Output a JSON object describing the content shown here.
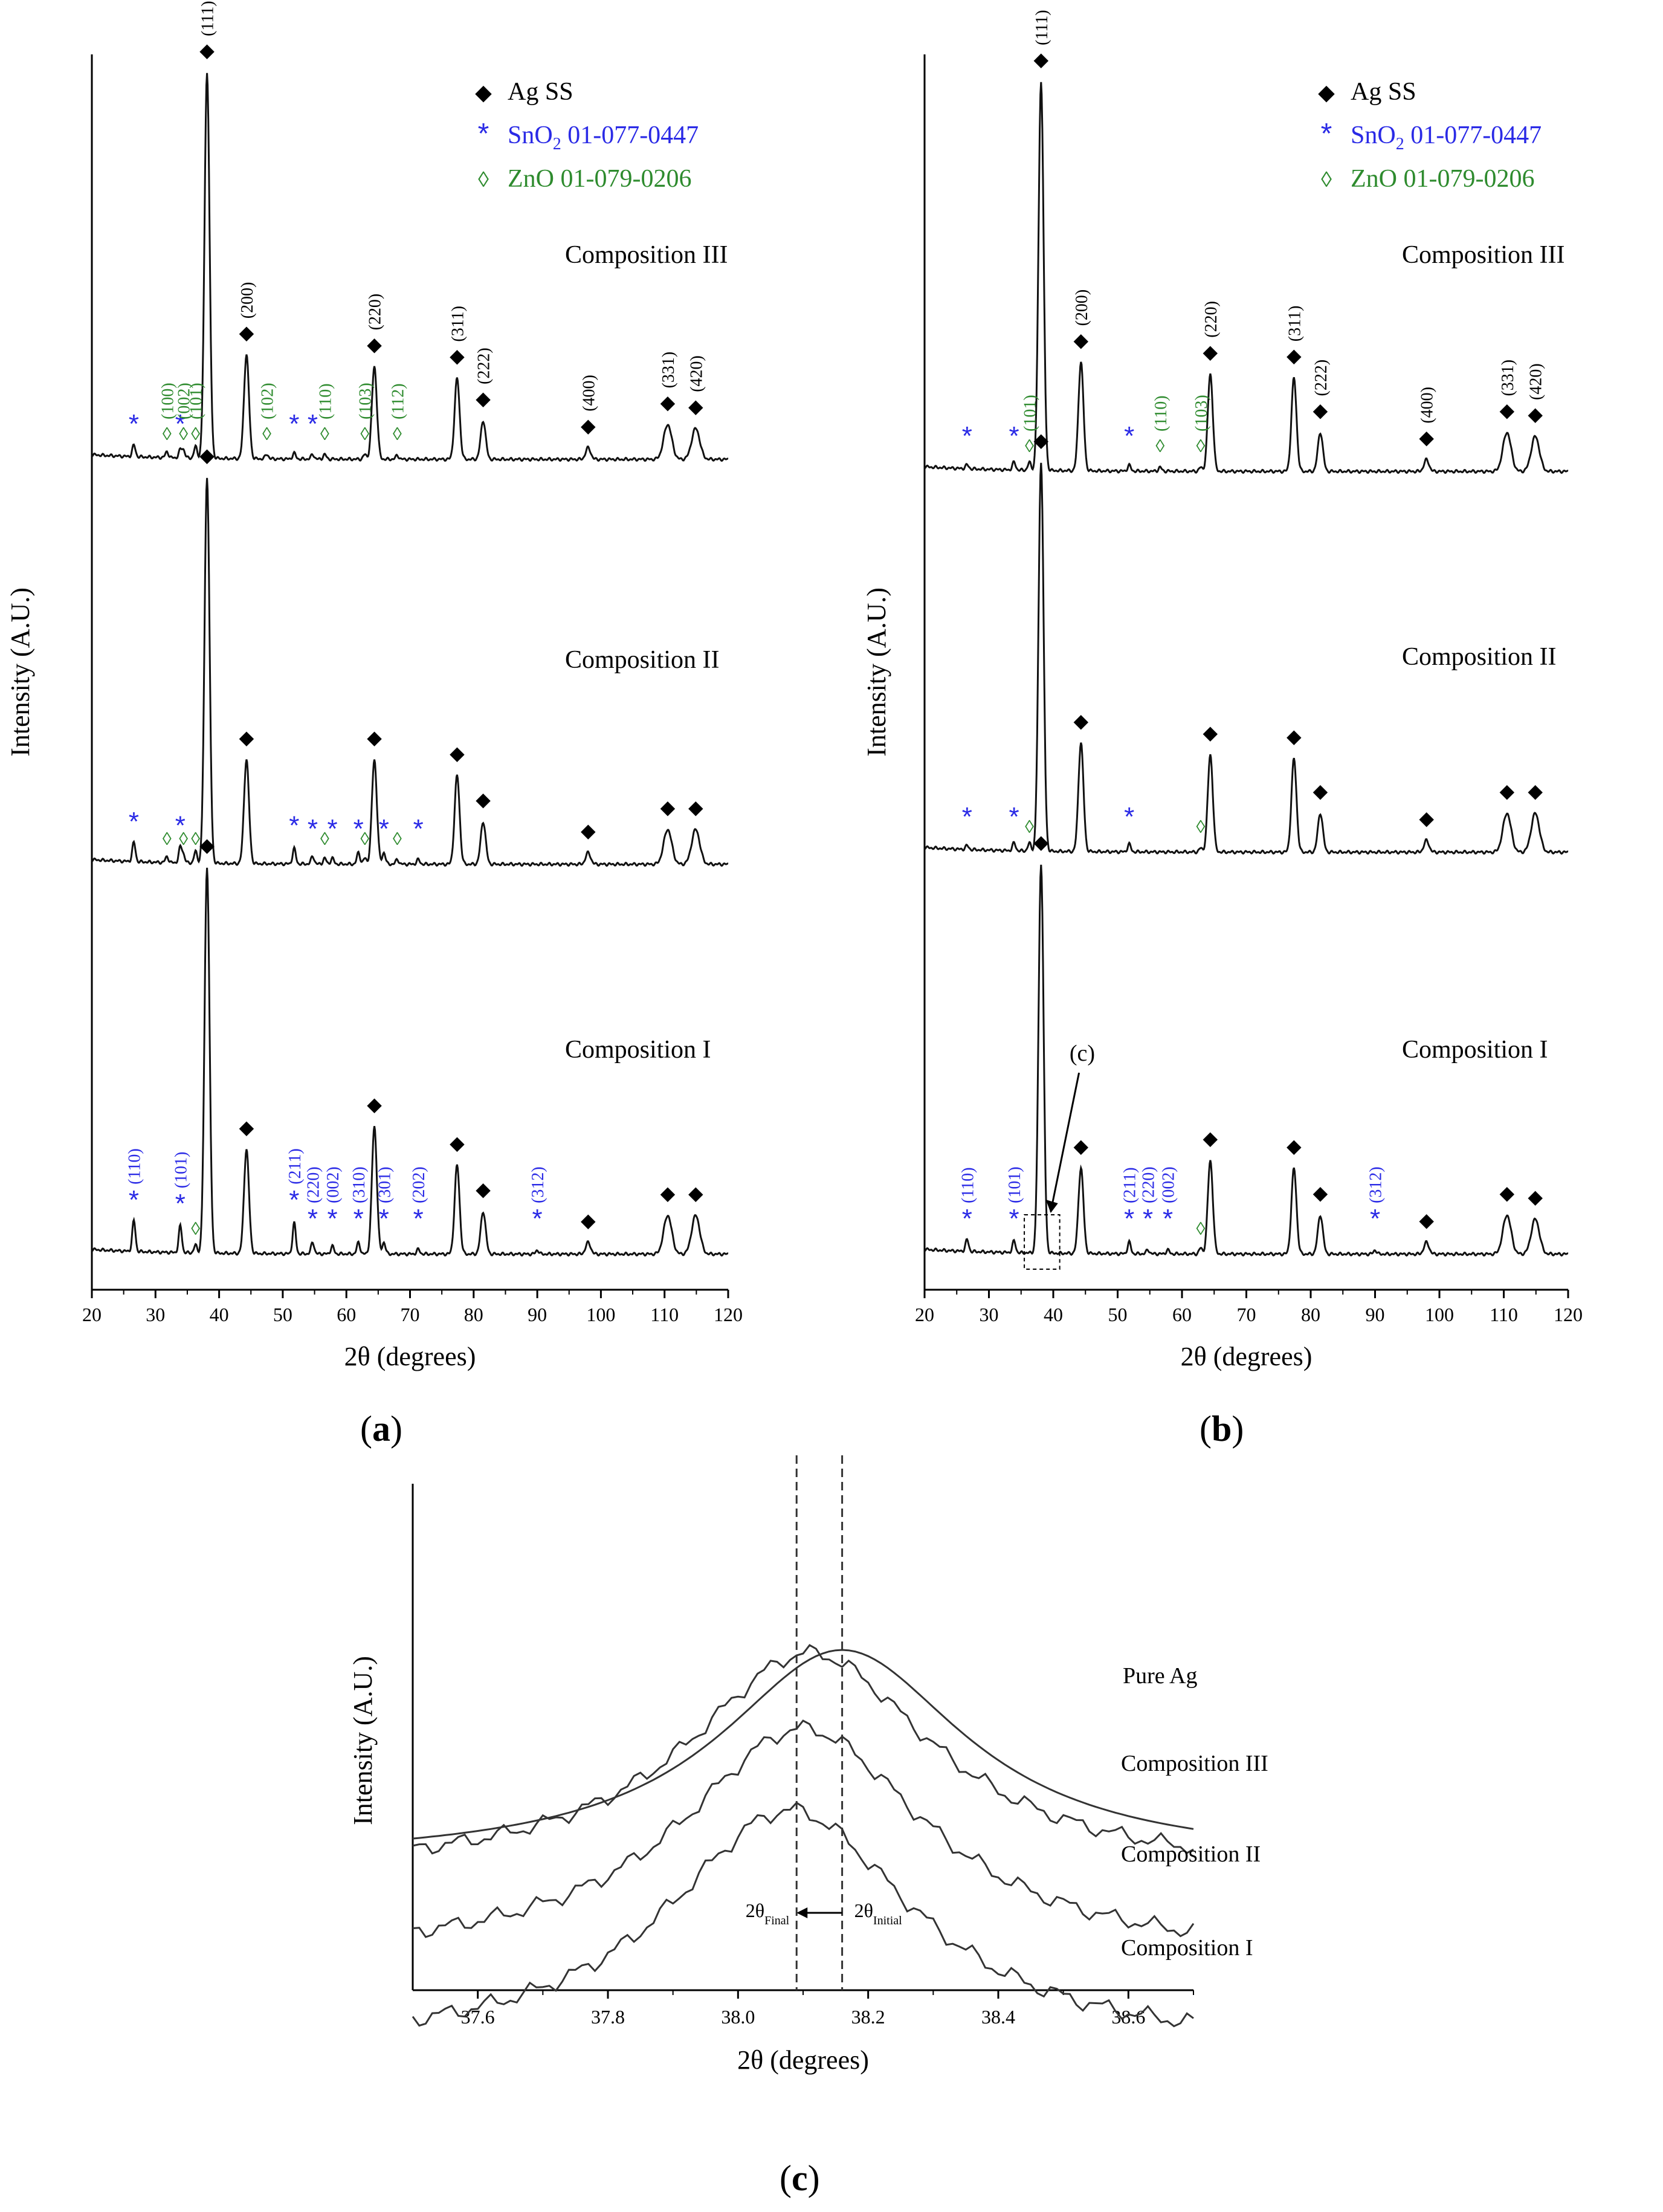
{
  "colors": {
    "ag": "#000000",
    "sno2": "#2a2ae6",
    "zno": "#2e8b2e",
    "line": "#111111",
    "dash": "#333333"
  },
  "panel_labels": {
    "a": "a",
    "b": "b",
    "c": "c"
  },
  "chart_data": [
    {
      "id": "a",
      "type": "line",
      "title": "",
      "xlabel": "2θ (degrees)",
      "ylabel": "Intensity (A.U.)",
      "xlim": [
        20,
        120
      ],
      "xticks": [
        20,
        30,
        40,
        50,
        60,
        70,
        80,
        90,
        100,
        110,
        120
      ],
      "legend": [
        {
          "symbol": "◆",
          "text": "Ag SS",
          "color": "ag"
        },
        {
          "symbol": "*",
          "text": "SnO",
          "sub": "2",
          "rest": " 01-077-0447",
          "color": "sno2"
        },
        {
          "symbol": "◊",
          "text": "ZnO  01-079-0206",
          "color": "zno"
        }
      ],
      "series": [
        {
          "name": "Composition III",
          "ag_peaks": [
            [
              38.1,
              1.0,
              "(111)"
            ],
            [
              44.3,
              0.27,
              "(200)"
            ],
            [
              64.4,
              0.24,
              "(220)"
            ],
            [
              77.4,
              0.21,
              "(311)"
            ],
            [
              81.5,
              0.1,
              "(222)"
            ],
            [
              98.0,
              0.03,
              "(400)"
            ],
            [
              110.5,
              0.09,
              "(331)"
            ],
            [
              114.9,
              0.08,
              "(420)"
            ]
          ],
          "sno2_peaks": [
            [
              26.6,
              0.03,
              ""
            ],
            [
              33.9,
              0.02,
              ""
            ],
            [
              51.8,
              0.015,
              ""
            ],
            [
              54.7,
              0.012,
              ""
            ]
          ],
          "zno_peaks": [
            [
              31.8,
              0.015,
              "(100)"
            ],
            [
              34.4,
              0.02,
              "(002)"
            ],
            [
              36.3,
              0.03,
              "(101)"
            ],
            [
              47.5,
              0.012,
              "(102)"
            ],
            [
              56.6,
              0.012,
              "(110)"
            ],
            [
              62.9,
              0.012,
              "(103)"
            ],
            [
              68.0,
              0.01,
              "(112)"
            ]
          ]
        },
        {
          "name": "Composition II",
          "ag_peaks": [
            [
              38.1,
              1.0,
              ""
            ],
            [
              44.3,
              0.27,
              ""
            ],
            [
              64.4,
              0.27,
              ""
            ],
            [
              77.4,
              0.23,
              ""
            ],
            [
              81.5,
              0.11,
              ""
            ],
            [
              98.0,
              0.03,
              ""
            ],
            [
              110.5,
              0.09,
              ""
            ],
            [
              114.9,
              0.09,
              ""
            ]
          ],
          "sno2_peaks": [
            [
              26.6,
              0.05,
              ""
            ],
            [
              33.9,
              0.04,
              ""
            ],
            [
              51.8,
              0.04,
              ""
            ],
            [
              54.7,
              0.02,
              ""
            ],
            [
              57.8,
              0.015,
              ""
            ],
            [
              61.9,
              0.03,
              ""
            ],
            [
              65.9,
              0.03,
              ""
            ],
            [
              71.3,
              0.012,
              ""
            ]
          ],
          "zno_peaks": [
            [
              31.8,
              0.015,
              ""
            ],
            [
              34.4,
              0.02,
              ""
            ],
            [
              36.3,
              0.03,
              ""
            ],
            [
              56.6,
              0.015,
              ""
            ],
            [
              62.9,
              0.015,
              ""
            ],
            [
              68.0,
              0.012,
              ""
            ]
          ]
        },
        {
          "name": "Composition I",
          "ag_peaks": [
            [
              38.1,
              1.0,
              ""
            ],
            [
              44.3,
              0.27,
              ""
            ],
            [
              64.4,
              0.33,
              ""
            ],
            [
              77.4,
              0.23,
              ""
            ],
            [
              81.5,
              0.11,
              ""
            ],
            [
              98.0,
              0.03,
              ""
            ],
            [
              110.5,
              0.1,
              ""
            ],
            [
              114.9,
              0.1,
              ""
            ]
          ],
          "sno2_peaks": [
            [
              26.6,
              0.08,
              "(110)"
            ],
            [
              33.9,
              0.07,
              "(101)"
            ],
            [
              51.8,
              0.08,
              "(211)"
            ],
            [
              54.7,
              0.03,
              "(220)"
            ],
            [
              57.8,
              0.02,
              "(002)"
            ],
            [
              61.9,
              0.03,
              "(310)"
            ],
            [
              65.9,
              0.03,
              "(301)"
            ],
            [
              71.3,
              0.012,
              "(202)"
            ],
            [
              90.0,
              0.01,
              "(312)"
            ]
          ],
          "zno_peaks": [
            [
              36.3,
              0.02,
              ""
            ]
          ]
        }
      ]
    },
    {
      "id": "b",
      "type": "line",
      "title": "",
      "xlabel": "2θ (degrees)",
      "ylabel": "Intensity (A.U.)",
      "xlim": [
        20,
        120
      ],
      "xticks": [
        20,
        30,
        40,
        50,
        60,
        70,
        80,
        90,
        100,
        110,
        120
      ],
      "legend": [
        {
          "symbol": "◆",
          "text": "Ag SS",
          "color": "ag"
        },
        {
          "symbol": "*",
          "text": "SnO",
          "sub": "2",
          "rest": " 01-077-0447",
          "color": "sno2"
        },
        {
          "symbol": "◊",
          "text": "ZnO  01-079-0206",
          "color": "zno"
        }
      ],
      "inset_annotation": "(c)",
      "series": [
        {
          "name": "Composition III",
          "ag_peaks": [
            [
              38.1,
              1.0,
              "(111)"
            ],
            [
              44.3,
              0.28,
              "(200)"
            ],
            [
              64.4,
              0.25,
              "(220)"
            ],
            [
              77.4,
              0.24,
              "(311)"
            ],
            [
              81.5,
              0.1,
              "(222)"
            ],
            [
              98.0,
              0.03,
              "(400)"
            ],
            [
              110.5,
              0.1,
              "(331)"
            ],
            [
              114.9,
              0.09,
              "(420)"
            ]
          ],
          "sno2_peaks": [
            [
              26.6,
              0.01,
              ""
            ],
            [
              33.9,
              0.02,
              ""
            ],
            [
              51.8,
              0.015,
              ""
            ]
          ],
          "zno_peaks": [
            [
              36.3,
              0.02,
              "(101)"
            ],
            [
              56.6,
              0.01,
              "(110)"
            ],
            [
              62.9,
              0.01,
              "(103)"
            ]
          ]
        },
        {
          "name": "Composition II",
          "ag_peaks": [
            [
              38.1,
              1.0,
              ""
            ],
            [
              44.3,
              0.28,
              ""
            ],
            [
              64.4,
              0.25,
              ""
            ],
            [
              77.4,
              0.24,
              ""
            ],
            [
              81.5,
              0.1,
              ""
            ],
            [
              98.0,
              0.03,
              ""
            ],
            [
              110.5,
              0.1,
              ""
            ],
            [
              114.9,
              0.1,
              ""
            ]
          ],
          "sno2_peaks": [
            [
              26.6,
              0.01,
              ""
            ],
            [
              33.9,
              0.02,
              ""
            ],
            [
              51.8,
              0.02,
              ""
            ]
          ],
          "zno_peaks": [
            [
              36.3,
              0.02,
              ""
            ],
            [
              62.9,
              0.01,
              ""
            ]
          ]
        },
        {
          "name": "Composition I",
          "ag_peaks": [
            [
              38.1,
              1.0,
              ""
            ],
            [
              44.3,
              0.22,
              ""
            ],
            [
              64.4,
              0.24,
              ""
            ],
            [
              77.4,
              0.22,
              ""
            ],
            [
              81.5,
              0.1,
              ""
            ],
            [
              98.0,
              0.03,
              ""
            ],
            [
              110.5,
              0.1,
              ""
            ],
            [
              114.9,
              0.09,
              ""
            ]
          ],
          "sno2_peaks": [
            [
              26.6,
              0.03,
              "(110)"
            ],
            [
              33.9,
              0.03,
              "(101)"
            ],
            [
              51.8,
              0.03,
              "(211)"
            ],
            [
              54.7,
              0.01,
              "(220)"
            ],
            [
              57.8,
              0.01,
              "(002)"
            ],
            [
              90.0,
              0.01,
              "(312)"
            ]
          ],
          "zno_peaks": [
            [
              62.9,
              0.015,
              ""
            ]
          ]
        }
      ]
    },
    {
      "id": "c",
      "type": "line",
      "title": "",
      "xlabel": "2θ (degrees)",
      "ylabel": "Intensity (A.U.)",
      "xlim": [
        37.5,
        38.7
      ],
      "xticks": [
        37.6,
        37.8,
        38.0,
        38.2,
        38.4,
        38.6
      ],
      "xtick_labels": [
        "37.6",
        "37.8",
        "38.0",
        "38.2",
        "38.4",
        "38.6"
      ],
      "vlines": [
        38.09,
        38.16
      ],
      "annotation_final": {
        "base": "2θ",
        "sub": "Final"
      },
      "annotation_initial": {
        "base": "2θ",
        "sub": "Initial"
      },
      "series": [
        {
          "name": "Pure Ag",
          "center": 38.16,
          "width": 0.17,
          "amp": 1.0
        },
        {
          "name": "Composition III",
          "center": 38.11,
          "width": 0.17,
          "amp": 1.0
        },
        {
          "name": "Composition II",
          "center": 38.1,
          "width": 0.17,
          "amp": 1.0
        },
        {
          "name": "Composition I",
          "center": 38.08,
          "width": 0.17,
          "amp": 1.0
        }
      ]
    }
  ]
}
